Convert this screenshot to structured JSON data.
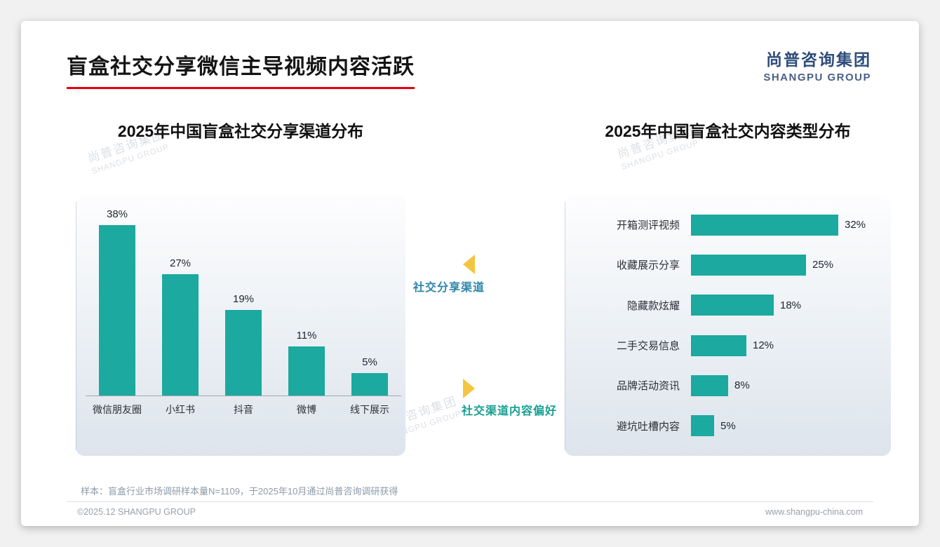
{
  "header": {
    "title": "盲盒社交分享微信主导视频内容活跃",
    "logo_cn": "尚普咨询集团",
    "logo_en": "SHANGPU GROUP"
  },
  "annotations": {
    "share_channel_label": "社交分享渠道",
    "content_preference_label": "社交渠道内容偏好"
  },
  "watermark": {
    "cn": "尚普咨询集团",
    "en": "SHANGPU GROUP"
  },
  "footer": {
    "sample_note": "样本：盲盒行业市场调研样本量N=1109，于2025年10月通过尚普咨询调研获得",
    "copyright": "©2025.12 SHANGPU GROUP",
    "website": "www.shangpu-china.com"
  },
  "colors": {
    "teal": "#1BA9A0",
    "accent_red": "#E60012",
    "navy": "#2E4D7B",
    "navy_light": "#4A5F85",
    "arrow_yellow": "#F4C542",
    "annotation_blue": "#2E86AB",
    "annotation_teal": "#17A092"
  },
  "chart_data": [
    {
      "type": "bar",
      "orientation": "vertical",
      "title": "2025年中国盲盒社交分享渠道分布",
      "categories": [
        "微信朋友圈",
        "小红书",
        "抖音",
        "微博",
        "线下展示"
      ],
      "values": [
        38,
        27,
        19,
        11,
        5
      ],
      "unit": "%",
      "ylim": [
        0,
        40
      ],
      "grid": false,
      "legend": "none"
    },
    {
      "type": "bar",
      "orientation": "horizontal",
      "title": "2025年中国盲盒社交内容类型分布",
      "categories": [
        "开箱测评视频",
        "收藏展示分享",
        "隐藏款炫耀",
        "二手交易信息",
        "品牌活动资讯",
        "避坑吐槽内容"
      ],
      "values": [
        32,
        25,
        18,
        12,
        8,
        5
      ],
      "unit": "%",
      "xlim": [
        0,
        35
      ],
      "grid": false,
      "legend": "none"
    }
  ]
}
